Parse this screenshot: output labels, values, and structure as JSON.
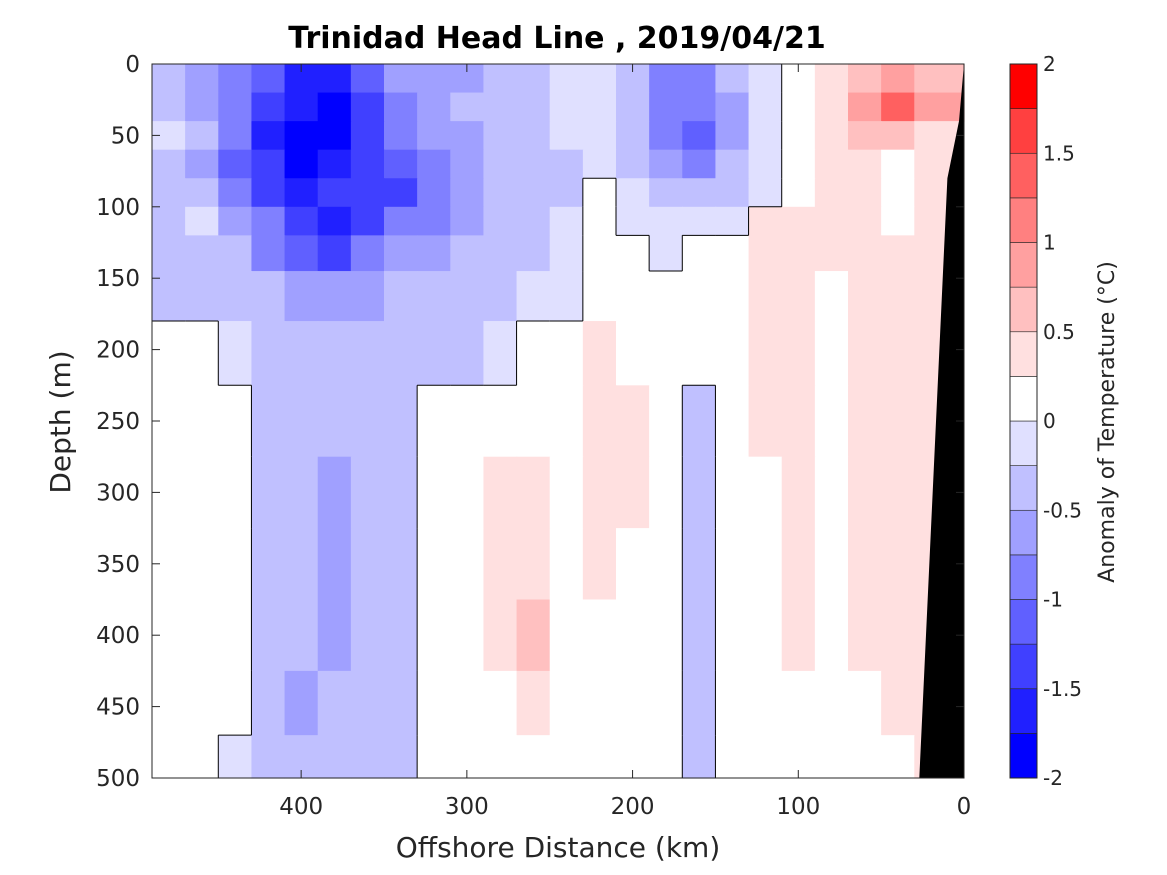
{
  "chart_data": {
    "type": "heatmap",
    "title": "Trinidad Head Line , 2019/04/21",
    "xlabel": "Offshore Distance (km)",
    "ylabel": "Depth (m)",
    "xlim": [
      490,
      0
    ],
    "ylim": [
      0,
      500
    ],
    "x_reversed": true,
    "y_reversed": true,
    "xticks": [
      400,
      300,
      200,
      100,
      0
    ],
    "yticks": [
      0,
      50,
      100,
      150,
      200,
      250,
      300,
      350,
      400,
      450,
      500
    ],
    "colorbar": {
      "label": "Anomaly of Temperature (°C)",
      "range": [
        -2,
        2
      ],
      "levels": [
        -2,
        -1.75,
        -1.5,
        -1.25,
        -1,
        -0.75,
        -0.5,
        -0.25,
        0,
        0.25,
        0.5,
        0.75,
        1,
        1.25,
        1.5,
        1.75,
        2
      ],
      "ticks": [
        2,
        1.5,
        1,
        0.5,
        0,
        -0.5,
        -1,
        -1.5,
        -2
      ],
      "tick_labels": [
        "2",
        "1.5",
        "1",
        "0.5",
        "0",
        "-0.5",
        "-1",
        "-1.5",
        "-2"
      ],
      "colors": [
        "#0000ff",
        "#2020ff",
        "#4040ff",
        "#6060ff",
        "#8080ff",
        "#a0a0ff",
        "#c0c0ff",
        "#e0e0ff",
        "#ffffff",
        "#ffe0e0",
        "#ffc0c0",
        "#ffa0a0",
        "#ff8080",
        "#ff6060",
        "#ff4040",
        "#ff0000"
      ]
    },
    "zero_contour": true,
    "bathymetry_color": "#000000",
    "bathymetry": [
      [
        0,
        0
      ],
      [
        3,
        40
      ],
      [
        10,
        80
      ],
      [
        27,
        500
      ]
    ],
    "cells": {
      "x": [
        480,
        460,
        440,
        420,
        400,
        380,
        360,
        340,
        320,
        300,
        280,
        260,
        240,
        220,
        200,
        180,
        160,
        140,
        120,
        100,
        80,
        60,
        40,
        20
      ],
      "depth": [
        10,
        30,
        50,
        70,
        90,
        110,
        130,
        160,
        200,
        250,
        300,
        350,
        400,
        450,
        490
      ],
      "anomaly": [
        [
          -0.45,
          -0.7,
          -0.9,
          -1.2,
          -1.6,
          -1.7,
          -1.2,
          -0.7,
          -0.6,
          -0.6,
          -0.4,
          -0.3,
          -0.1,
          -0.05,
          -0.3,
          -0.8,
          -0.8,
          -0.4,
          -0.1,
          0.05,
          0.3,
          0.6,
          0.8,
          0.6
        ],
        [
          -0.4,
          -0.6,
          -0.9,
          -1.3,
          -1.6,
          -1.8,
          -1.3,
          -0.8,
          -0.6,
          -0.5,
          -0.4,
          -0.3,
          -0.2,
          -0.1,
          -0.3,
          -0.9,
          -1.0,
          -0.6,
          -0.1,
          0.05,
          0.4,
          0.9,
          1.3,
          0.8
        ],
        [
          -0.1,
          -0.5,
          -0.9,
          -1.6,
          -1.9,
          -1.8,
          -1.3,
          -0.9,
          -0.7,
          -0.6,
          -0.45,
          -0.3,
          -0.25,
          -0.15,
          -0.3,
          -0.9,
          -1.1,
          -0.7,
          -0.15,
          0.05,
          0.35,
          0.6,
          0.5,
          0.3
        ],
        [
          -0.35,
          -0.6,
          -1.1,
          -1.5,
          -1.8,
          -1.7,
          -1.4,
          -1.1,
          -0.8,
          -0.6,
          -0.45,
          -0.35,
          -0.3,
          -0.2,
          -0.3,
          -0.7,
          -0.8,
          -0.5,
          -0.1,
          0.05,
          0.3,
          0.3,
          0.1,
          0.3
        ],
        [
          -0.4,
          -0.3,
          -0.9,
          -1.3,
          -1.6,
          -1.5,
          -1.3,
          -1.3,
          -1.0,
          -0.7,
          -0.45,
          -0.35,
          -0.3,
          0.05,
          -0.2,
          -0.4,
          -0.4,
          -0.3,
          -0.1,
          0.1,
          0.3,
          0.3,
          0.05,
          0.3
        ],
        [
          -0.4,
          -0.1,
          -0.6,
          -1.0,
          -1.4,
          -1.7,
          -1.3,
          -0.8,
          -0.8,
          -0.6,
          -0.4,
          -0.3,
          -0.15,
          0.05,
          -0.05,
          -0.15,
          -0.1,
          -0.05,
          0.3,
          0.35,
          0.3,
          0.3,
          0.15,
          0.3
        ],
        [
          -0.4,
          -0.4,
          -0.5,
          -0.8,
          -1.2,
          -1.3,
          -1.0,
          -0.7,
          -0.7,
          -0.5,
          -0.35,
          -0.3,
          -0.1,
          0.05,
          0.05,
          -0.05,
          0.05,
          0.05,
          0.3,
          0.35,
          0.3,
          0.3,
          0.3,
          0.3
        ],
        [
          -0.3,
          -0.3,
          -0.4,
          -0.5,
          -0.7,
          -0.7,
          -0.6,
          -0.45,
          -0.45,
          -0.4,
          -0.3,
          -0.2,
          -0.05,
          0.05,
          0.05,
          0.05,
          0.05,
          0.1,
          0.3,
          0.3,
          0.1,
          0.3,
          0.3,
          0.3
        ],
        [
          0.05,
          0.05,
          -0.1,
          -0.3,
          -0.3,
          -0.4,
          -0.35,
          -0.3,
          -0.3,
          -0.3,
          -0.2,
          0.05,
          0.05,
          0.3,
          0.15,
          0.05,
          0.05,
          0.05,
          0.3,
          0.3,
          0.05,
          0.3,
          0.3,
          0.3
        ],
        [
          0.05,
          0.05,
          0.05,
          -0.3,
          -0.35,
          -0.4,
          -0.35,
          -0.3,
          0.05,
          0.05,
          0.05,
          0.05,
          0.05,
          0.3,
          0.3,
          0.05,
          -0.4,
          0.05,
          0.3,
          0.3,
          0.05,
          0.3,
          0.35,
          0.4
        ],
        [
          0.05,
          0.05,
          0.05,
          -0.3,
          -0.5,
          -0.55,
          -0.35,
          -0.3,
          0.05,
          0.05,
          0.3,
          0.3,
          0.05,
          0.3,
          0.3,
          0.05,
          -0.45,
          0.05,
          0.05,
          0.35,
          0.05,
          0.3,
          0.3,
          0.35
        ],
        [
          0.05,
          0.05,
          0.05,
          -0.3,
          -0.5,
          -0.55,
          -0.35,
          -0.3,
          0.05,
          0.05,
          0.3,
          0.35,
          0.05,
          0.3,
          0.05,
          0.05,
          -0.4,
          0.05,
          0.05,
          0.3,
          0.05,
          0.3,
          0.3,
          0.35
        ],
        [
          0.05,
          0.05,
          0.05,
          -0.3,
          -0.5,
          -0.6,
          -0.35,
          -0.3,
          0.05,
          0.05,
          0.3,
          0.55,
          0.05,
          0.05,
          0.05,
          0.05,
          -0.4,
          0.05,
          0.05,
          0.3,
          0.05,
          0.3,
          0.3,
          0.35
        ],
        [
          0.05,
          0.05,
          0.05,
          -0.3,
          -0.55,
          -0.5,
          -0.3,
          -0.3,
          0.05,
          0.05,
          0.05,
          0.3,
          0.05,
          0.05,
          0.05,
          0.05,
          -0.35,
          0.05,
          0.05,
          0.05,
          0.05,
          0.05,
          0.3,
          0.35
        ],
        [
          0.05,
          0.05,
          -0.2,
          -0.3,
          -0.5,
          -0.3,
          -0.3,
          -0.3,
          0.05,
          0.05,
          0.05,
          0.05,
          0.05,
          0.05,
          0.05,
          0.05,
          -0.35,
          0.05,
          0.05,
          0.05,
          0.05,
          0.05,
          0.05,
          0.35
        ]
      ]
    }
  }
}
